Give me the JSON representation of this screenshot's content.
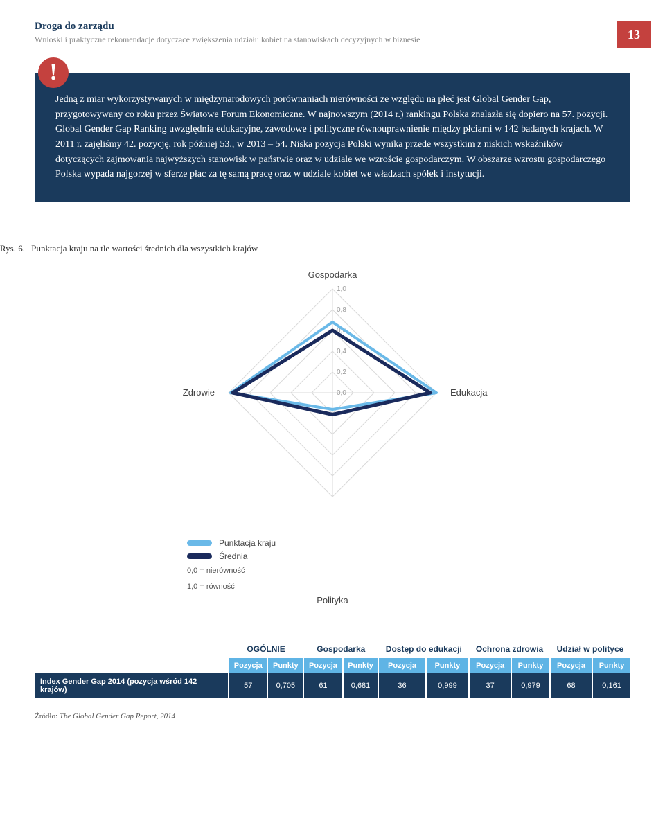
{
  "header": {
    "title": "Droga do zarządu",
    "subtitle": "Wnioski i praktyczne rekomendacje dotyczące zwiększenia udziału kobiet na stanowiskach decyzyjnych w biznesie",
    "page_number": "13"
  },
  "callout": {
    "icon": "!",
    "text": "Jedną z miar wykorzystywanych w międzynarodowych porównaniach nierówności ze względu na płeć jest Global Gender Gap, przygotowywany co roku przez Światowe Forum Ekonomiczne. W najnowszym (2014 r.) rankingu Polska znalazła się dopiero na 57. pozycji. Global Gender Gap Ranking uwzględnia edukacyjne, zawodowe i polityczne równouprawnienie między płciami w 142 badanych krajach. W 2011 r. zajęliśmy 42. pozycję, rok później 53., w 2013 – 54. Niska pozycja Polski wynika przede wszystkim z niskich wskaźników dotyczących zajmowania najwyższych stanowisk w państwie oraz w udziale we wzroście gospodarczym. W obszarze wzrostu gospodarczego Polska wypada najgorzej w sferze płac za tę samą pracę oraz w udziale kobiet we władzach spółek i instytucji."
  },
  "figure": {
    "prefix": "Rys. 6.",
    "caption": "Punktacja kraju na tle wartości średnich dla wszystkich krajów"
  },
  "radar": {
    "type": "radar",
    "axes": [
      "Gospodarka",
      "Edukacja",
      "Polityka",
      "Zdrowie"
    ],
    "ticks": [
      "1,0",
      "0,8",
      "0,6",
      "0,4",
      "0,2",
      "0,0"
    ],
    "series": [
      {
        "name": "Punktacja kraju",
        "color": "#6ab9e8",
        "values": [
          0.68,
          1.0,
          0.16,
          0.98
        ]
      },
      {
        "name": "Średnia",
        "color": "#1a2a5c",
        "values": [
          0.6,
          0.94,
          0.21,
          0.96
        ]
      }
    ],
    "max": 1.0,
    "grid_color": "#d9d9d9",
    "stroke_width_country": 4,
    "stroke_width_avg": 5,
    "legend_notes": [
      "0,0 = nierówność",
      "1,0 = równość"
    ]
  },
  "table": {
    "row_label": "Index Gender Gap 2014 (pozycja wśród 142 krajów)",
    "groups": [
      "OGÓLNIE",
      "Gospodarka",
      "Dostęp do edukacji",
      "Ochrona zdrowia",
      "Udział w polityce"
    ],
    "subheaders": [
      "Pozycja",
      "Punkty"
    ],
    "cells": [
      [
        "57",
        "0,705"
      ],
      [
        "61",
        "0,681"
      ],
      [
        "36",
        "0,999"
      ],
      [
        "37",
        "0,979"
      ],
      [
        "68",
        "0,161"
      ]
    ]
  },
  "source": {
    "label": "Źródło:",
    "text": "The Global Gender Gap Report, 2014"
  },
  "colors": {
    "callout_bg": "#1a3a5c",
    "accent_red": "#c4413e",
    "sub_bg": "#5fb4e5"
  }
}
